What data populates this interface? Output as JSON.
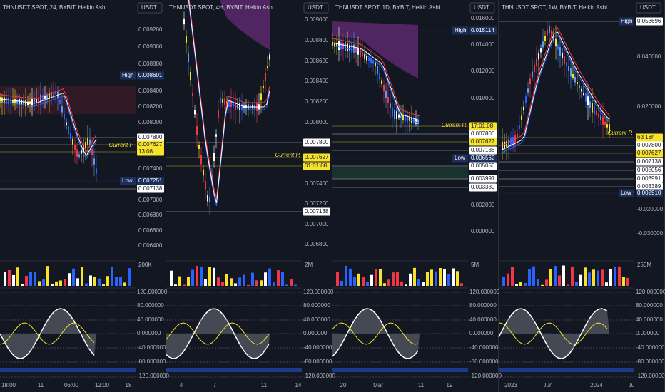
{
  "oscillator_axis": [
    "120.000000",
    "80.000000",
    "40.000000",
    "0.000000",
    "-40.000000",
    "-80.000000",
    "-120.000000"
  ],
  "current_label": "Current P.",
  "panels": [
    {
      "title": "THNUSDT SPOT, 24, BYBIT, Heikin Ashi",
      "currency": "USDT",
      "ticks": [
        "0.009200",
        "0.009000",
        "0.008800",
        "0.008400",
        "0.008200",
        "0.008000",
        "0.007400",
        "0.007000",
        "0.006800",
        "0.006600",
        "0.006400"
      ],
      "tags": [
        {
          "prefix": "High",
          "text": "0.008601",
          "color": "#1c2f5a"
        },
        {
          "text": "0.007800",
          "color": "#ffffff"
        },
        {
          "text": "0.007627",
          "color": "#f7e32b"
        },
        {
          "text": "13:08",
          "color": "#f7e32b"
        },
        {
          "prefix": "Low",
          "text": "0.007251",
          "color": "#1c2f5a"
        },
        {
          "text": "0.007138",
          "color": "#ffffff"
        }
      ],
      "volume": "200K",
      "x_labels": [
        "18:00",
        "11",
        "06:00",
        "12:00",
        "18"
      ]
    },
    {
      "title": "THNUSDT SPOT, 4H, BYBIT, Heikin Ashi",
      "currency": "USDT",
      "ticks": [
        "0.009000",
        "0.008800",
        "0.008600",
        "0.008400",
        "0.008200",
        "0.008000",
        "0.007400",
        "0.007200",
        "0.007000",
        "0.006800"
      ],
      "tags": [
        {
          "text": "0.007800",
          "color": "#ffffff"
        },
        {
          "text": "0.007627",
          "color": "#f7e32b"
        },
        {
          "text": "01:01:08",
          "color": "#f7e32b"
        },
        {
          "text": "0.007138",
          "color": "#ffffff"
        }
      ],
      "volume": "2M",
      "x_labels": [
        "4",
        "7",
        "11",
        "14"
      ]
    },
    {
      "title": "THNUSDT SPOT, 1D, BYBIT, Heikin Ashi",
      "currency": "USDT",
      "ticks": [
        "0.016000",
        "0.014000",
        "0.012000",
        "0.010000",
        "0.002000",
        "0.000000"
      ],
      "tags": [
        {
          "prefix": "High",
          "text": "0.015114",
          "color": "#1c2f5a"
        },
        {
          "text": "17:01:08",
          "color": "#f7e32b"
        },
        {
          "text": "0.007800",
          "color": "#ffffff"
        },
        {
          "text": "0.007627",
          "color": "#f7e32b"
        },
        {
          "text": "0.007138",
          "color": "#ffffff"
        },
        {
          "prefix": "Low",
          "text": "0.006562",
          "color": "#1c2f5a"
        },
        {
          "text": "0.005056",
          "color": "#ffffff"
        },
        {
          "text": "0.003991",
          "color": "#ffffff"
        },
        {
          "text": "0.003389",
          "color": "#ffffff"
        }
      ],
      "volume": "5M",
      "x_labels": [
        "20",
        "Mar",
        "11",
        "19"
      ]
    },
    {
      "title": "THNUSDT SPOT, 1W, BYBIT, Heikin Ashi",
      "currency": "USDT",
      "ticks": [
        "0.040000",
        "0.020000",
        "-0.020000",
        "-0.030000"
      ],
      "tags": [
        {
          "prefix": "High",
          "text": "0.053696",
          "color": "#ffffff"
        },
        {
          "text": "6d 18h",
          "color": "#f7e32b"
        },
        {
          "text": "0.007800",
          "color": "#ffffff"
        },
        {
          "text": "0.007627",
          "color": "#f7e32b"
        },
        {
          "text": "0.007138",
          "color": "#ffffff"
        },
        {
          "text": "0.005056",
          "color": "#ffffff"
        },
        {
          "text": "0.003991",
          "color": "#ffffff"
        },
        {
          "text": "0.003389",
          "color": "#ffffff"
        },
        {
          "prefix": "Low",
          "text": "0.002910",
          "color": "#1c2f5a"
        }
      ],
      "volume": "250M",
      "x_labels": [
        "2023",
        "Jun",
        "2024",
        "Ju"
      ]
    }
  ]
}
